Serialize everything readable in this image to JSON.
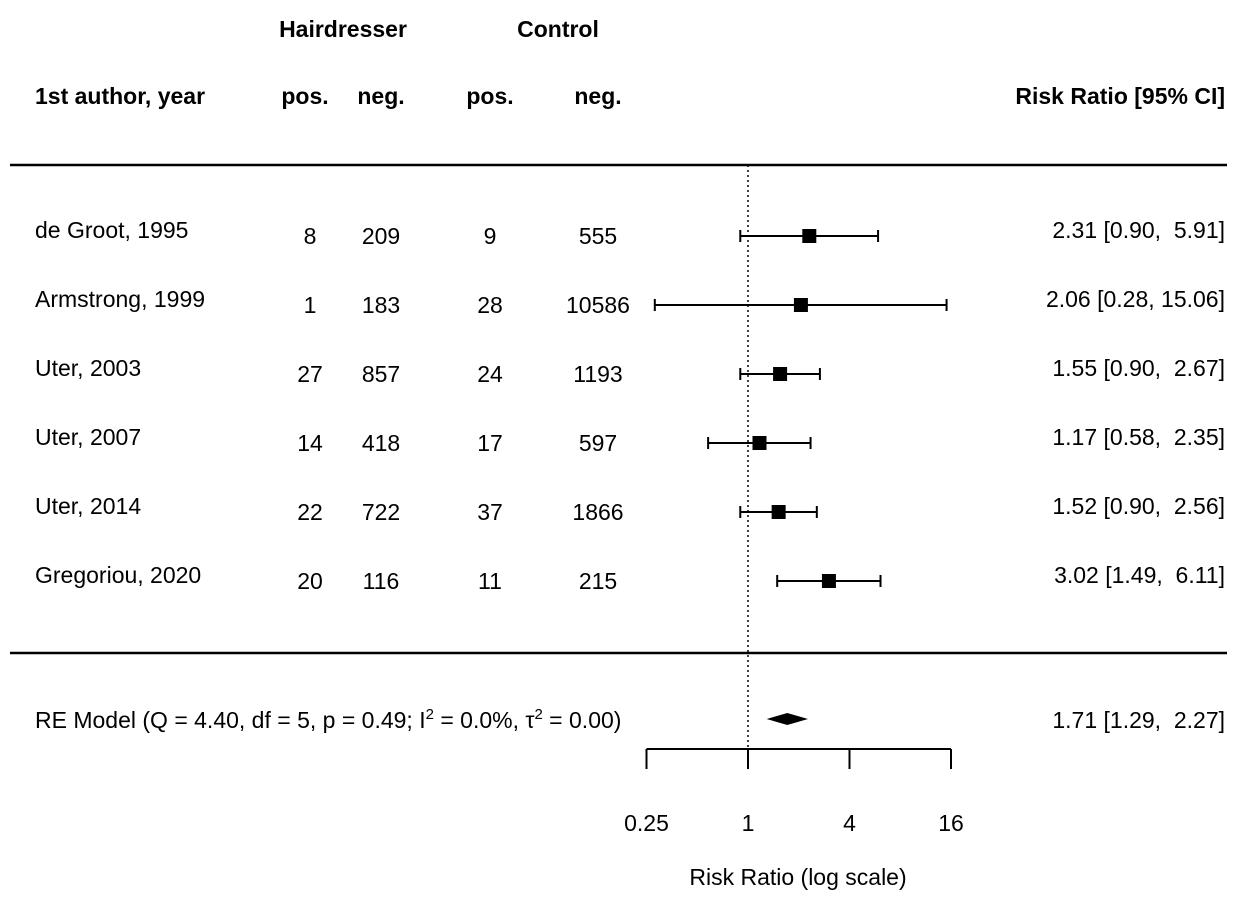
{
  "chart_data": {
    "type": "forest",
    "headers": {
      "group1": "Hairdresser",
      "group2": "Control",
      "study": "1st author, year",
      "g1_pos": "pos.",
      "g1_neg": "neg.",
      "g2_pos": "pos.",
      "g2_neg": "neg.",
      "effect": "Risk Ratio [95% CI]"
    },
    "studies": [
      {
        "label": "de Groot, 1995",
        "g1_pos": "8",
        "g1_neg": "209",
        "g2_pos": "9",
        "g2_neg": "555",
        "rr": 2.31,
        "lo": 0.9,
        "hi": 5.91,
        "ci_text": "2.31 [0.90,  5.91]"
      },
      {
        "label": "Armstrong, 1999",
        "g1_pos": "1",
        "g1_neg": "183",
        "g2_pos": "28",
        "g2_neg": "10586",
        "rr": 2.06,
        "lo": 0.28,
        "hi": 15.06,
        "ci_text": "2.06 [0.28, 15.06]"
      },
      {
        "label": "Uter, 2003",
        "g1_pos": "27",
        "g1_neg": "857",
        "g2_pos": "24",
        "g2_neg": "1193",
        "rr": 1.55,
        "lo": 0.9,
        "hi": 2.67,
        "ci_text": "1.55 [0.90,  2.67]"
      },
      {
        "label": "Uter, 2007",
        "g1_pos": "14",
        "g1_neg": "418",
        "g2_pos": "17",
        "g2_neg": "597",
        "rr": 1.17,
        "lo": 0.58,
        "hi": 2.35,
        "ci_text": "1.17 [0.58,  2.35]"
      },
      {
        "label": "Uter, 2014",
        "g1_pos": "22",
        "g1_neg": "722",
        "g2_pos": "37",
        "g2_neg": "1866",
        "rr": 1.52,
        "lo": 0.9,
        "hi": 2.56,
        "ci_text": "1.52 [0.90,  2.56]"
      },
      {
        "label": "Gregoriou, 2020",
        "g1_pos": "20",
        "g1_neg": "116",
        "g2_pos": "11",
        "g2_neg": "215",
        "rr": 3.02,
        "lo": 1.49,
        "hi": 6.11,
        "ci_text": "3.02 [1.49,  6.11]"
      }
    ],
    "summary": {
      "label_prefix": "RE Model  (Q = 4.40, df = 5, p = 0.49; I",
      "sup1": "2",
      "label_mid": " = 0.0%, τ",
      "sup2": "2",
      "label_suffix": " = 0.00)",
      "rr": 1.71,
      "lo": 1.29,
      "hi": 2.27,
      "ci_text": "1.71 [1.29,  2.27]"
    },
    "x_axis": {
      "label": "Risk Ratio (log scale)",
      "scale": "log",
      "ticks": [
        0.25,
        1,
        4,
        16
      ],
      "tick_labels": [
        "0.25",
        "1",
        "4",
        "16"
      ],
      "reference_line": 1
    }
  }
}
